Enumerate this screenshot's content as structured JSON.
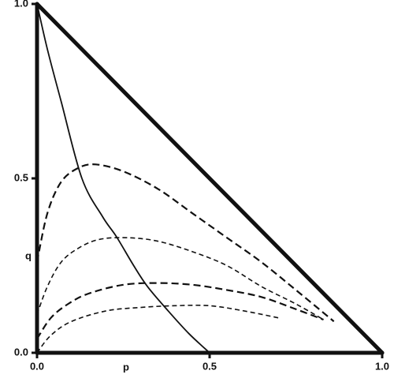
{
  "chart_data": {
    "type": "line",
    "x_label": "p",
    "y_label": "q",
    "xlim": [
      0,
      1
    ],
    "ylim": [
      0,
      1
    ],
    "xticks": [
      {
        "value": 0,
        "label": "0.0"
      },
      {
        "value": 0.5,
        "label": "0.5"
      },
      {
        "value": 1,
        "label": "1.0"
      }
    ],
    "yticks": [
      {
        "value": 0,
        "label": "0.0"
      },
      {
        "value": 0.5,
        "label": "0.5"
      },
      {
        "value": 1,
        "label": "1.0"
      }
    ],
    "series": [
      {
        "color": "#111111",
        "style": "solid",
        "x": [
          0,
          0.03,
          0.07,
          0.13,
          0.19,
          0.23,
          0.28,
          0.32,
          0.38,
          0.44,
          0.5
        ],
        "values": [
          1,
          0.87,
          0.72,
          0.5,
          0.39,
          0.333,
          0.25,
          0.19,
          0.12,
          0.055,
          0
        ]
      },
      {
        "color": "#111111",
        "style": "dashed",
        "x": [
          0,
          0.03,
          0.07,
          0.12,
          0.17,
          0.25,
          0.35,
          0.45,
          0.55,
          0.65,
          0.75,
          0.86
        ],
        "values": [
          0.26,
          0.4,
          0.49,
          0.53,
          0.54,
          0.52,
          0.47,
          0.4,
          0.33,
          0.26,
          0.18,
          0.09
        ]
      },
      {
        "color": "#111111",
        "style": "dashed",
        "x": [
          0,
          0.03,
          0.07,
          0.12,
          0.18,
          0.26,
          0.35,
          0.45,
          0.55,
          0.65,
          0.75,
          0.83
        ],
        "values": [
          0.11,
          0.19,
          0.26,
          0.3,
          0.325,
          0.33,
          0.32,
          0.29,
          0.25,
          0.19,
          0.14,
          0.095
        ]
      },
      {
        "color": "#111111",
        "style": "dashed",
        "x": [
          0,
          0.04,
          0.09,
          0.15,
          0.25,
          0.35,
          0.45,
          0.55,
          0.65,
          0.75,
          0.83
        ],
        "values": [
          0.04,
          0.1,
          0.14,
          0.17,
          0.195,
          0.2,
          0.195,
          0.18,
          0.16,
          0.125,
          0.095
        ]
      },
      {
        "color": "#111111",
        "style": "dashed",
        "x": [
          0,
          0.04,
          0.1,
          0.2,
          0.3,
          0.4,
          0.5,
          0.6,
          0.7
        ],
        "values": [
          0,
          0.05,
          0.09,
          0.12,
          0.13,
          0.135,
          0.135,
          0.12,
          0.1
        ]
      }
    ]
  }
}
